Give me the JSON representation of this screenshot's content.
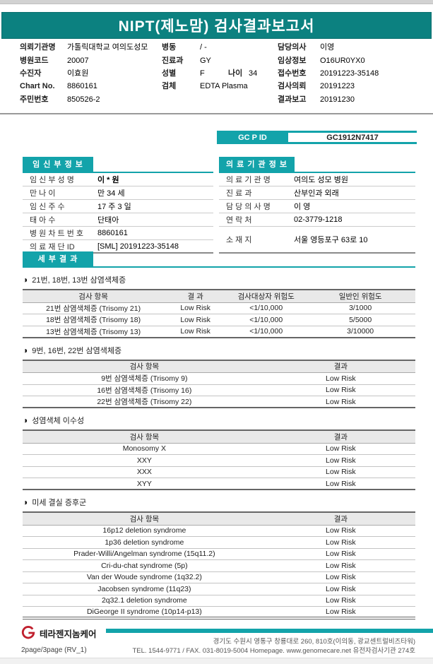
{
  "header": {
    "title": "NIPT(제노맘) 검사결과보고서"
  },
  "patient_info": {
    "requesting_org": {
      "label": "의뢰기관명",
      "value": "가톨릭대학교 여의도성모"
    },
    "ward": {
      "label": "병동",
      "value": "/ -"
    },
    "hospital_code": {
      "label": "병원코드",
      "value": "20007"
    },
    "department": {
      "label": "진료과",
      "value": "GY"
    },
    "patient": {
      "label": "수진자",
      "value": "이효원"
    },
    "sex": {
      "label": "성별",
      "value": "F"
    },
    "age": {
      "label": "나이",
      "value": "34"
    },
    "chart_no": {
      "label": "Chart No.",
      "value": "8860161"
    },
    "specimen": {
      "label": "검체",
      "value": "EDTA Plasma"
    },
    "resident_no": {
      "label": "주민번호",
      "value": "850526-2"
    },
    "doctor": {
      "label": "담당의사",
      "value": "이영"
    },
    "clinical_info": {
      "label": "임상정보",
      "value": "O16UR0YX0"
    },
    "receipt_no": {
      "label": "접수번호",
      "value": "20191223-35148"
    },
    "test_request": {
      "label": "검사의뢰",
      "value": "20191223"
    },
    "result_report": {
      "label": "결과보고",
      "value": "20191230"
    }
  },
  "gcp": {
    "label": "GC P ID",
    "value": "GC1912N7417"
  },
  "mother_info": {
    "title": "임 신 부 정 보",
    "rows": [
      {
        "label": "임 신 부  성 명",
        "value": "이 * 원",
        "bold": true
      },
      {
        "label": "만       나       이",
        "value": "만 34 세"
      },
      {
        "label": "임  신  주  수",
        "value": "17 주  3 일"
      },
      {
        "label": "태     아     수",
        "value": "단태아"
      },
      {
        "label": "병 원 차 트 번 호",
        "value": "8860161"
      },
      {
        "label": "의 료 재 단  ID",
        "value": "[SML] 20191223-35148"
      }
    ]
  },
  "clinic_info": {
    "title": "의 료 기 관  정 보",
    "rows": [
      {
        "label": "의 료 기 관 명",
        "value": "여의도 성모 병원"
      },
      {
        "label": "진       료       과",
        "value": "산부인과 외래"
      },
      {
        "label": "담 당 의 사 명",
        "value": "이       영"
      },
      {
        "label": "연     락     처",
        "value": "02-3779-1218"
      },
      {
        "label": "소     재     지",
        "value": "서울 영등포구 63로 10",
        "tall": true
      }
    ]
  },
  "results": {
    "title": "세 부 결 과",
    "bullet": "◑",
    "sections": [
      {
        "heading": "21번, 18번, 13번 삼염색체증",
        "columns": [
          "검사 항목",
          "결 과",
          "검사대상자 위험도",
          "일반인 위험도"
        ],
        "rows": [
          [
            "21번 삼염색체증 (Trisomy 21)",
            "Low Risk",
            "<1/10,000",
            "3/1000"
          ],
          [
            "18번 삼염색체증 (Trisomy 18)",
            "Low Risk",
            "<1/10,000",
            "5/5000"
          ],
          [
            "13번 삼염색체증 (Trisomy 13)",
            "Low Risk",
            "<1/10,000",
            "3/10000"
          ]
        ]
      },
      {
        "heading": "9번, 16번, 22번 삼염색체증",
        "columns": [
          "검사 항목",
          "결과"
        ],
        "rows": [
          [
            "9번 삼염색체증 (Trisomy 9)",
            "Low Risk"
          ],
          [
            "16번 삼염색체증 (Trisomy 16)",
            "Low Risk"
          ],
          [
            "22번 삼염색체증 (Trisomy 22)",
            "Low Risk"
          ]
        ]
      },
      {
        "heading": "성염색체 이수성",
        "columns": [
          "검사 항목",
          "결과"
        ],
        "rows": [
          [
            "Monosomy X",
            "Low Risk"
          ],
          [
            "XXY",
            "Low Risk"
          ],
          [
            "XXX",
            "Low Risk"
          ],
          [
            "XYY",
            "Low Risk"
          ]
        ]
      },
      {
        "heading": "미세 결실 증후군",
        "columns": [
          "검사 항목",
          "결과"
        ],
        "rows": [
          [
            "16p12 deletion syndrome",
            "Low Risk"
          ],
          [
            "1p36  deletion syndrome",
            "Low Risk"
          ],
          [
            "Prader-Willi/Angelman syndrome (15q11.2)",
            "Low Risk"
          ],
          [
            "Cri-du-chat syndrome (5p)",
            "Low Risk"
          ],
          [
            "Van der Woude syndrome (1q32.2)",
            "Low Risk"
          ],
          [
            "Jacobsen syndrome (11q23)",
            "Low Risk"
          ],
          [
            "2q32.1 deletion syndrome",
            "Low Risk"
          ],
          [
            "DiGeorge II syndrome (10p14-p13)",
            "Low Risk"
          ]
        ]
      }
    ]
  },
  "footer": {
    "company": "테라젠지놈케어",
    "page": "2page/3page (RV_1)",
    "address": "경기도 수원시 영통구 창룡대로 260, 810호(이의동, 광교센트럴비즈타워)",
    "contact": "TEL. 1544-9771 / FAX. 031-8019-5004 Homepage. www.genomecare.net 유전자검사기관 274호"
  },
  "colors": {
    "banner_teal": "#0c8180",
    "accent_teal": "#13a3aa",
    "logo_red": "#c0202e"
  }
}
